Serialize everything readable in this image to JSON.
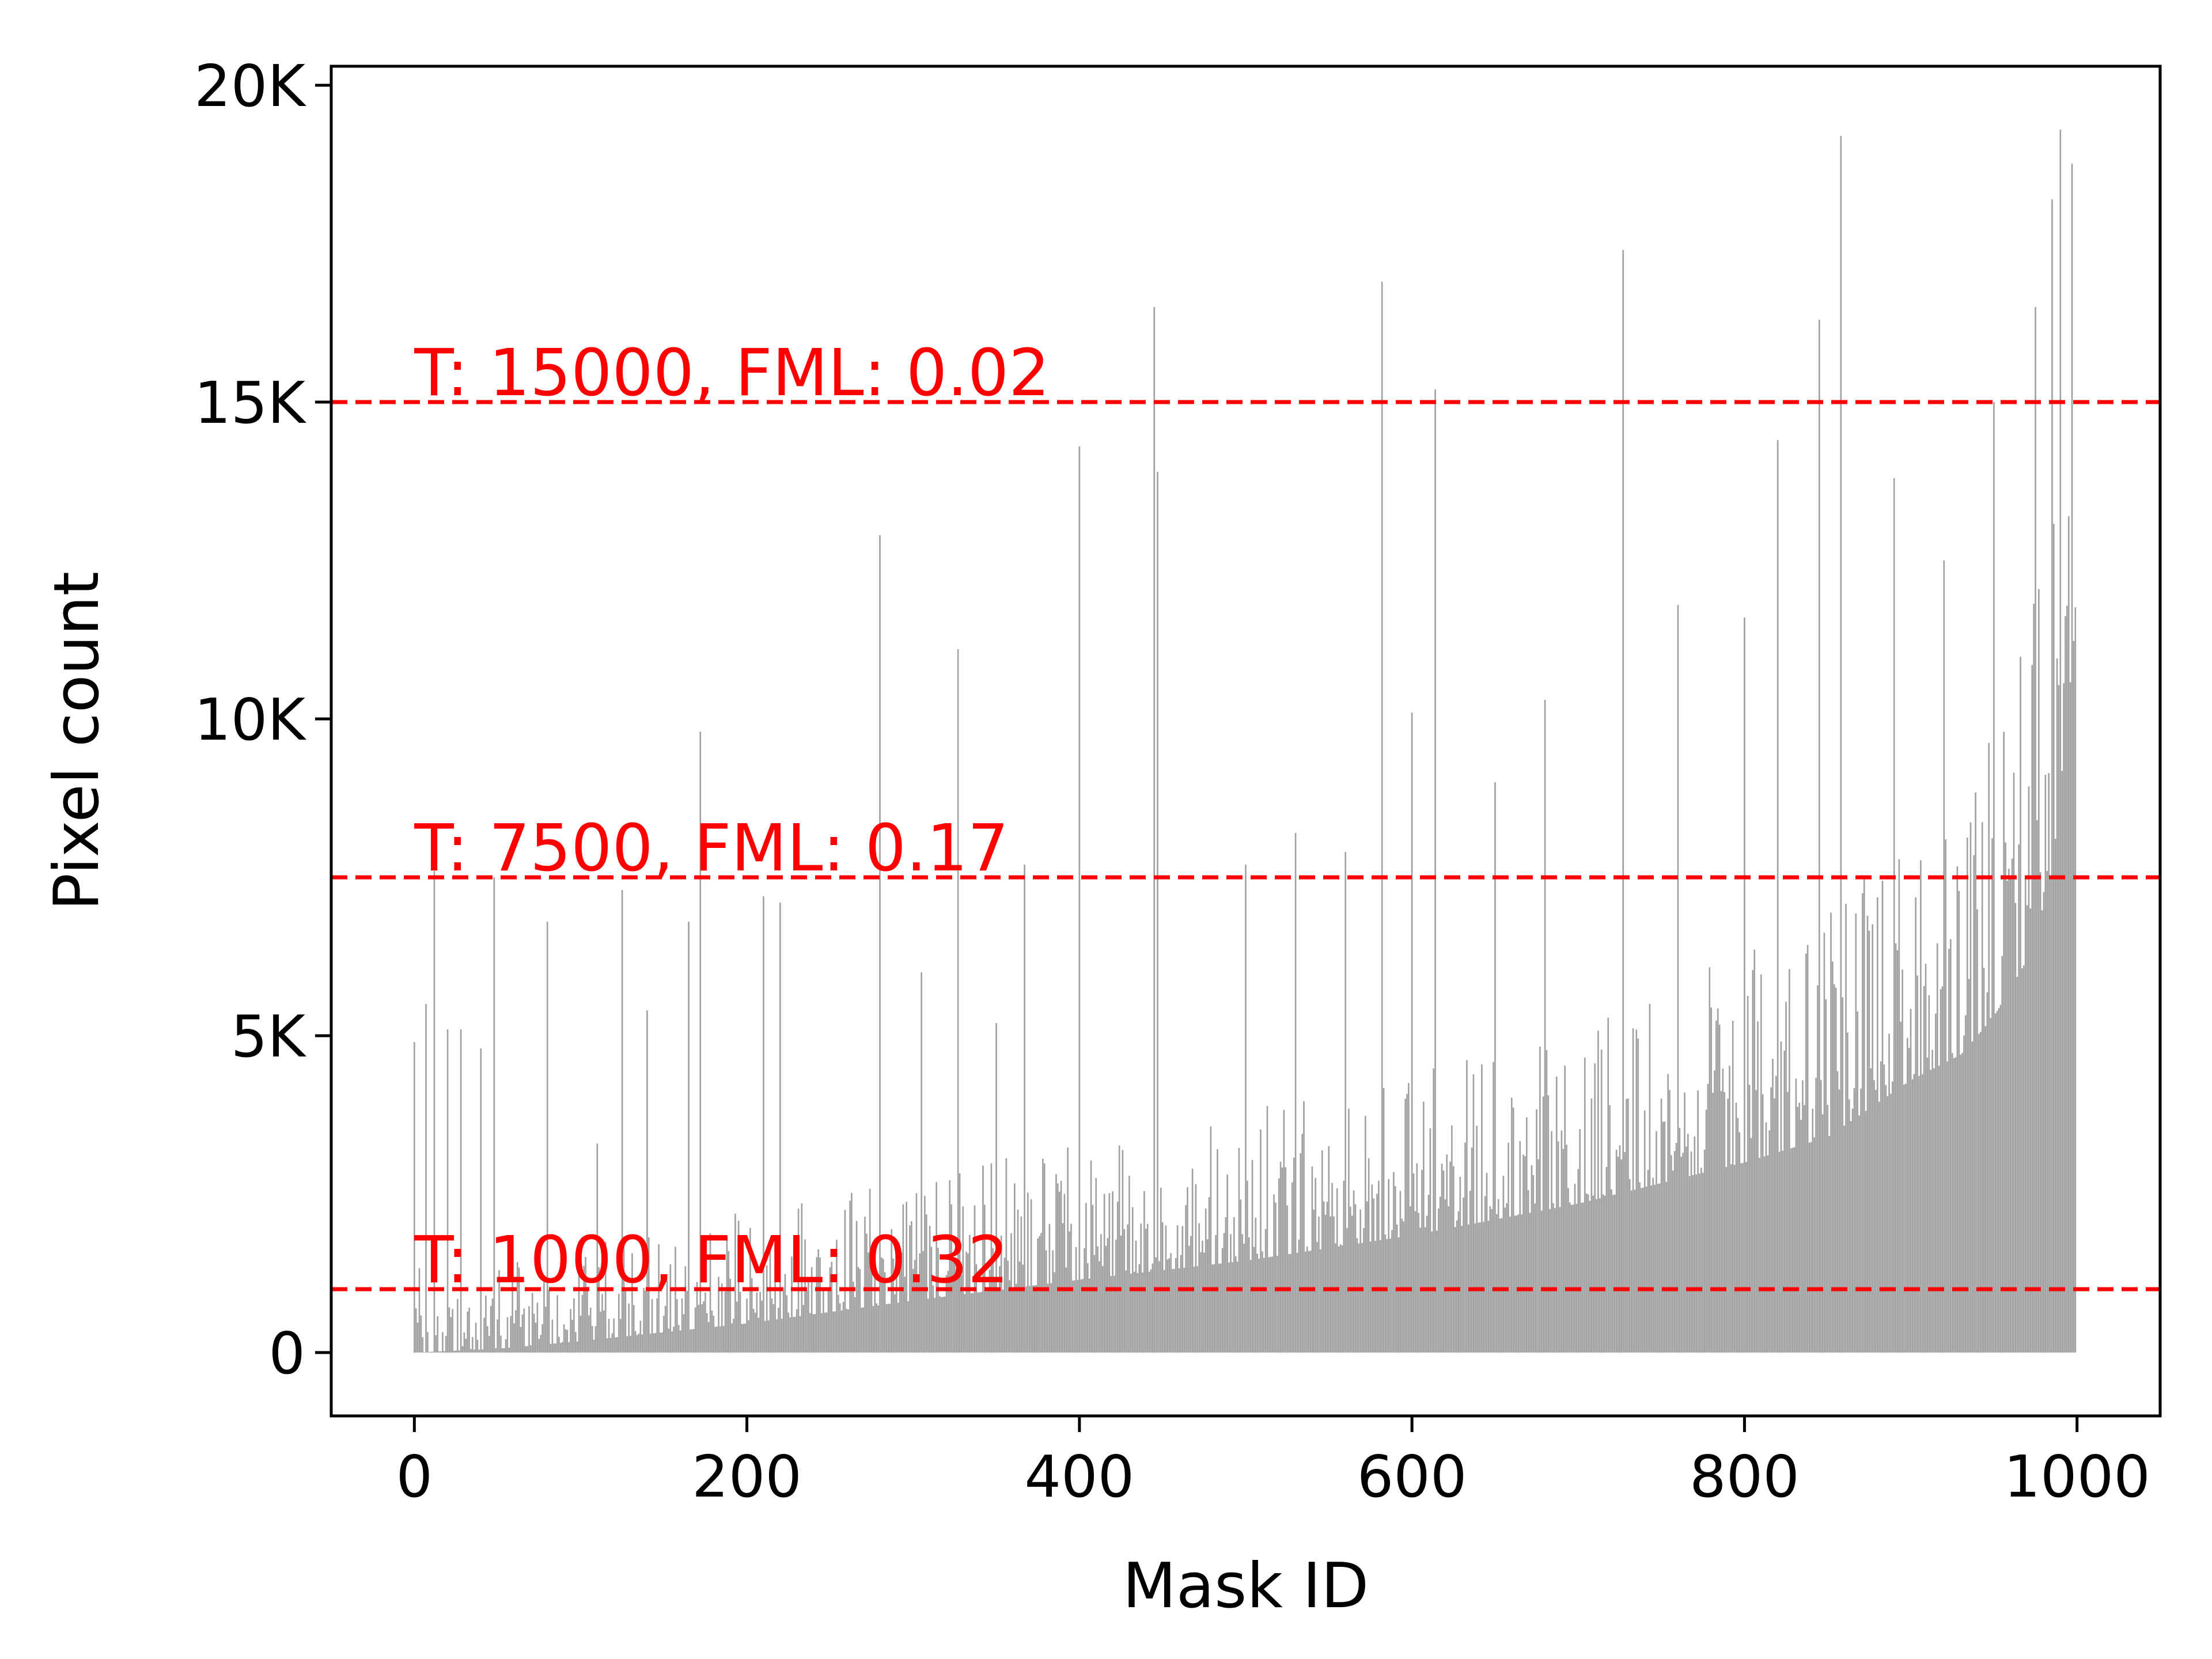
{
  "chart_data": {
    "type": "bar",
    "xlabel": "Mask ID",
    "ylabel": "Pixel count",
    "xlim": [
      -50,
      1050
    ],
    "ylim": [
      -1000,
      20300
    ],
    "x_ticks": [
      0,
      200,
      400,
      600,
      800,
      1000
    ],
    "x_tick_labels": [
      "0",
      "200",
      "400",
      "600",
      "800",
      "1000"
    ],
    "y_ticks": [
      0,
      5000,
      10000,
      15000,
      20000
    ],
    "y_tick_labels": [
      "0",
      "5K",
      "10K",
      "15K",
      "20K"
    ],
    "grid": false,
    "bar_color": "#a0a0a0",
    "n_masks": 1000,
    "baseline_curve_points": [
      [
        0,
        0
      ],
      [
        50,
        60
      ],
      [
        100,
        180
      ],
      [
        200,
        460
      ],
      [
        300,
        820
      ],
      [
        400,
        1150
      ],
      [
        500,
        1450
      ],
      [
        600,
        1850
      ],
      [
        700,
        2350
      ],
      [
        800,
        3000
      ],
      [
        850,
        3400
      ],
      [
        900,
        4300
      ],
      [
        930,
        4700
      ],
      [
        950,
        5300
      ],
      [
        970,
        6200
      ],
      [
        985,
        7500
      ],
      [
        1000,
        11700
      ]
    ],
    "spikes": [
      [
        0,
        4900
      ],
      [
        7,
        5500
      ],
      [
        12,
        7600
      ],
      [
        20,
        5100
      ],
      [
        28,
        5100
      ],
      [
        40,
        4800
      ],
      [
        48,
        7500
      ],
      [
        80,
        6800
      ],
      [
        110,
        3300
      ],
      [
        125,
        7300
      ],
      [
        140,
        5400
      ],
      [
        165,
        6800
      ],
      [
        172,
        9800
      ],
      [
        210,
        7200
      ],
      [
        220,
        7100
      ],
      [
        280,
        12900
      ],
      [
        305,
        6000
      ],
      [
        327,
        11100
      ],
      [
        350,
        5200
      ],
      [
        367,
        7700
      ],
      [
        400,
        14300
      ],
      [
        445,
        16500
      ],
      [
        447,
        13900
      ],
      [
        500,
        7700
      ],
      [
        530,
        8200
      ],
      [
        560,
        7900
      ],
      [
        582,
        16900
      ],
      [
        600,
        10100
      ],
      [
        614,
        15200
      ],
      [
        650,
        9000
      ],
      [
        680,
        10300
      ],
      [
        727,
        17400
      ],
      [
        760,
        11800
      ],
      [
        800,
        11600
      ],
      [
        820,
        14400
      ],
      [
        845,
        16300
      ],
      [
        858,
        19200
      ],
      [
        890,
        13800
      ],
      [
        920,
        12500
      ],
      [
        950,
        15000
      ],
      [
        975,
        16500
      ],
      [
        985,
        18200
      ],
      [
        990,
        19300
      ]
    ],
    "thresholds": [
      {
        "y": 15000,
        "label": "T: 15000, FML: 0.02"
      },
      {
        "y": 7500,
        "label": "T: 7500, FML: 0.17"
      },
      {
        "y": 1000,
        "label": "T: 1000, FML: 0.32"
      }
    ],
    "threshold_color": "#ff0000"
  }
}
